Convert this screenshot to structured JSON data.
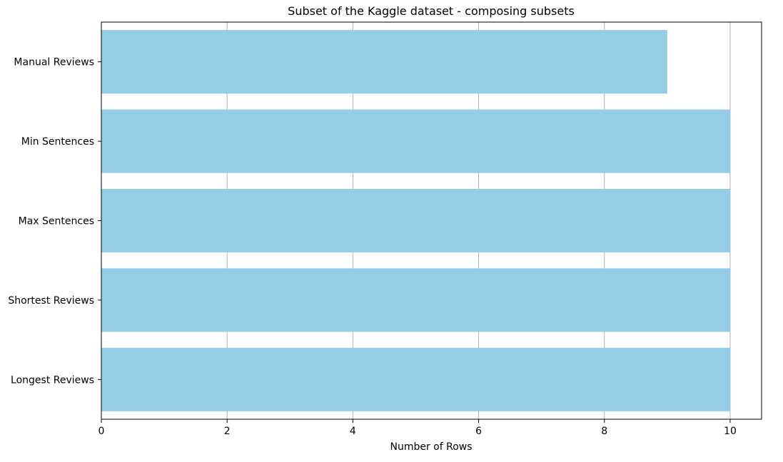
{
  "chart_data": {
    "type": "bar",
    "orientation": "horizontal",
    "title": "Subset of the Kaggle dataset - composing subsets",
    "xlabel": "Number of Rows",
    "ylabel": "",
    "categories": [
      "Manual Reviews",
      "Min Sentences",
      "Max Sentences",
      "Shortest Reviews",
      "Longest Reviews"
    ],
    "values": [
      9,
      10,
      10,
      10,
      10
    ],
    "xlim": [
      0,
      10.5
    ],
    "xticks": [
      0,
      2,
      4,
      6,
      8,
      10
    ],
    "grid": {
      "x": true,
      "y": false
    },
    "bar_color": "#95cde7",
    "grid_color": "#b0b0b0"
  }
}
